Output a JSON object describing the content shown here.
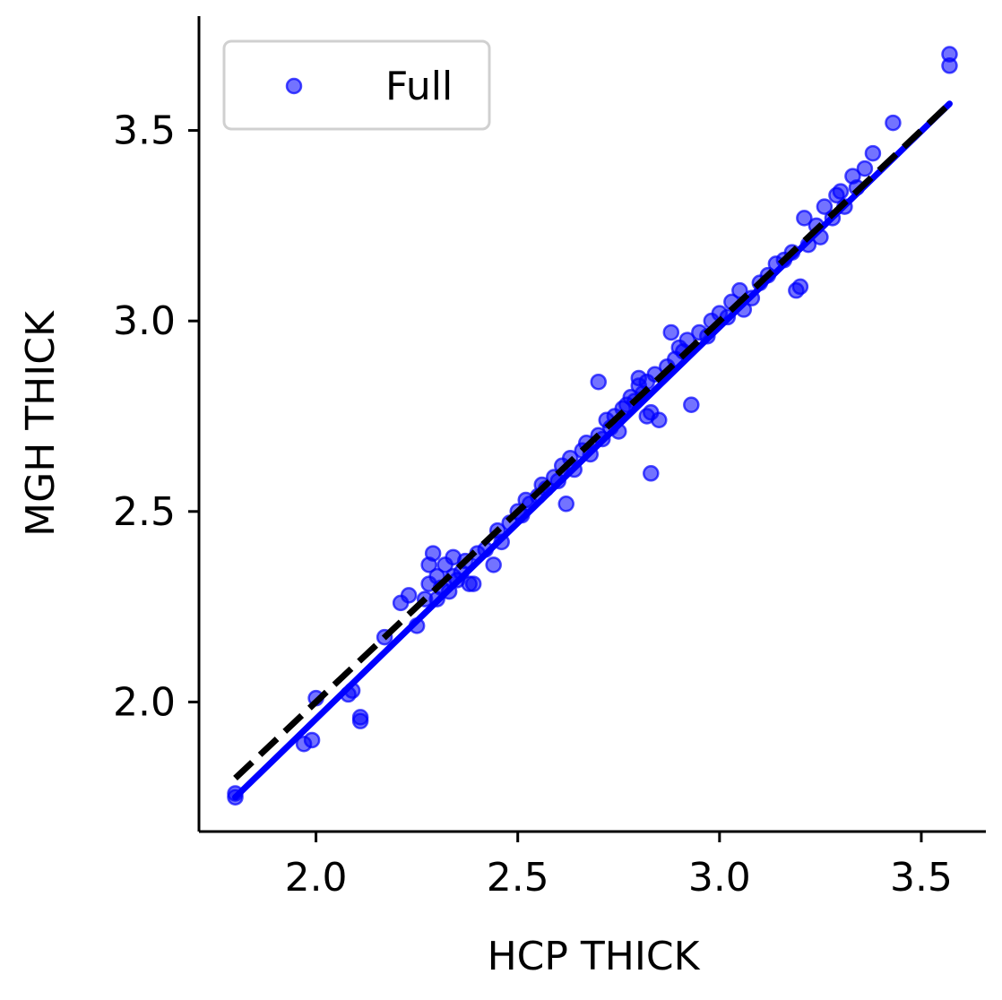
{
  "chart_data": {
    "type": "scatter",
    "title": "",
    "xlabel": "HCP THICK",
    "ylabel": "MGH THICK",
    "xlim": [
      1.71,
      3.66
    ],
    "ylim": [
      1.66,
      3.8
    ],
    "xticks": [
      2.0,
      2.5,
      3.0,
      3.5
    ],
    "yticks": [
      2.0,
      2.5,
      3.0,
      3.5
    ],
    "xtick_labels": [
      "2.0",
      "2.5",
      "3.0",
      "3.5"
    ],
    "ytick_labels": [
      "2.0",
      "2.5",
      "3.0",
      "3.5"
    ],
    "grid": false,
    "legend": {
      "position": "top-left",
      "entries": [
        "Full"
      ]
    },
    "colors": {
      "points": "#0000ff",
      "fit_line": "#0000ff",
      "identity_line": "#000000"
    },
    "series": [
      {
        "name": "Full",
        "x": [
          1.8,
          1.8,
          1.97,
          1.99,
          2.0,
          2.08,
          2.09,
          2.11,
          2.11,
          2.17,
          2.21,
          2.23,
          2.25,
          2.27,
          2.28,
          2.29,
          2.3,
          2.31,
          2.32,
          2.33,
          2.34,
          2.35,
          2.36,
          2.37,
          2.38,
          2.4,
          2.42,
          2.44,
          2.45,
          2.46,
          2.48,
          2.5,
          2.51,
          2.52,
          2.53,
          2.55,
          2.56,
          2.57,
          2.59,
          2.6,
          2.61,
          2.63,
          2.64,
          2.66,
          2.67,
          2.68,
          2.7,
          2.71,
          2.72,
          2.73,
          2.74,
          2.75,
          2.76,
          2.77,
          2.78,
          2.79,
          2.8,
          2.81,
          2.82,
          2.83,
          2.83,
          2.84,
          2.85,
          2.87,
          2.89,
          2.9,
          2.91,
          2.92,
          2.95,
          2.97,
          2.98,
          3.0,
          3.02,
          3.03,
          3.05,
          3.06,
          3.08,
          3.1,
          3.12,
          3.14,
          3.16,
          3.18,
          3.19,
          3.2,
          3.21,
          3.22,
          3.24,
          3.25,
          3.26,
          3.28,
          3.29,
          3.3,
          3.31,
          3.33,
          3.34,
          3.36,
          3.38,
          3.43,
          3.57,
          3.57,
          2.62,
          2.7,
          2.8,
          2.82,
          2.88,
          2.93,
          2.3,
          2.28,
          2.34,
          2.39
        ],
        "y": [
          1.75,
          1.76,
          1.89,
          1.9,
          2.01,
          2.02,
          2.03,
          1.95,
          1.96,
          2.17,
          2.26,
          2.28,
          2.2,
          2.27,
          2.31,
          2.39,
          2.33,
          2.3,
          2.36,
          2.29,
          2.38,
          2.32,
          2.34,
          2.37,
          2.31,
          2.39,
          2.4,
          2.36,
          2.45,
          2.42,
          2.47,
          2.5,
          2.49,
          2.53,
          2.52,
          2.54,
          2.57,
          2.56,
          2.59,
          2.58,
          2.62,
          2.64,
          2.61,
          2.66,
          2.68,
          2.65,
          2.7,
          2.69,
          2.74,
          2.72,
          2.75,
          2.71,
          2.77,
          2.78,
          2.8,
          2.79,
          2.83,
          2.81,
          2.84,
          2.76,
          2.6,
          2.86,
          2.74,
          2.88,
          2.9,
          2.93,
          2.92,
          2.95,
          2.97,
          2.96,
          3.0,
          3.02,
          3.01,
          3.05,
          3.08,
          3.03,
          3.06,
          3.1,
          3.12,
          3.15,
          3.16,
          3.18,
          3.08,
          3.09,
          3.27,
          3.2,
          3.25,
          3.22,
          3.3,
          3.27,
          3.33,
          3.34,
          3.3,
          3.38,
          3.35,
          3.4,
          3.44,
          3.52,
          3.7,
          3.67,
          2.52,
          2.84,
          2.85,
          2.75,
          2.97,
          2.78,
          2.27,
          2.36,
          2.33,
          2.31
        ]
      }
    ],
    "fit_line": {
      "x": [
        1.8,
        3.57
      ],
      "y": [
        1.75,
        3.57
      ]
    },
    "identity_line": {
      "x": [
        1.8,
        3.57
      ],
      "y": [
        1.8,
        3.57
      ]
    }
  }
}
